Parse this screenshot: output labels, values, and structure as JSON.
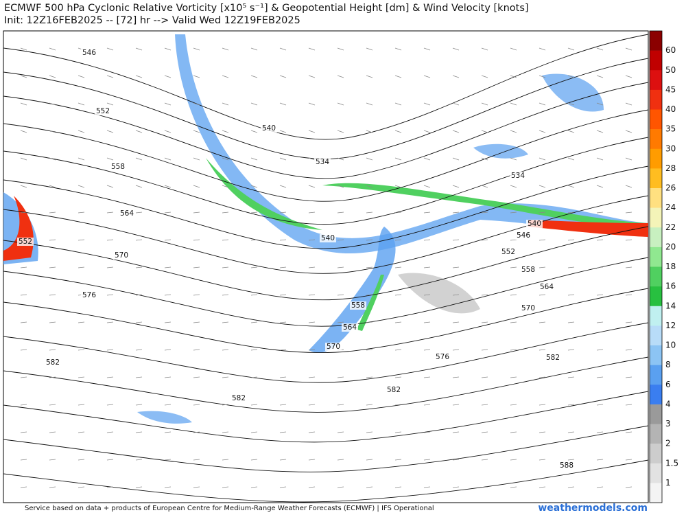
{
  "header": {
    "title": "ECMWF 500 hPa Cyclonic Relative Vorticity [x10⁵ s⁻¹] & Geopotential Height [dm] & Wind Velocity [knots]",
    "subtitle": "Init: 12Z16FEB2025 -- [72] hr --> Valid Wed 12Z19FEB2025"
  },
  "contour_labels": [
    546,
    552,
    558,
    564,
    570,
    576,
    582,
    552,
    540,
    534,
    540,
    534,
    540,
    546,
    552,
    558,
    564,
    570,
    582,
    576,
    558,
    564,
    570,
    582,
    582,
    588
  ],
  "colorbar": {
    "labels": [
      60,
      50,
      45,
      40,
      35,
      30,
      28,
      26,
      24,
      22,
      20,
      18,
      16,
      14,
      12,
      10,
      8,
      6,
      4,
      3,
      2,
      1.5,
      1
    ],
    "colors": [
      "#8b0000",
      "#c00000",
      "#dd1010",
      "#f03010",
      "#ff5500",
      "#ff7a00",
      "#ff9c00",
      "#ffbd20",
      "#ffe080",
      "#f4f4b8",
      "#c8f0c0",
      "#90e890",
      "#50d060",
      "#28c040",
      "#c0f0f0",
      "#b8dcf8",
      "#8cc4f4",
      "#5aa0f0",
      "#3a7ef0",
      "#9a9a9a",
      "#b4b4b4",
      "#cdcdcd",
      "#e2e2e2",
      "#f4f4f4"
    ]
  },
  "footer": {
    "credit": "Service based on data + products of European Centre for Medium-Range Weather Forecasts (ECMWF) | IFS Operational",
    "site": "weathermodels.com"
  }
}
